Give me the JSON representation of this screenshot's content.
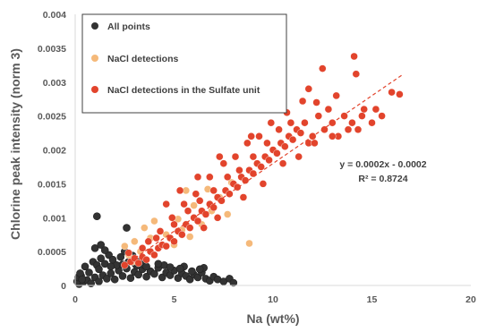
{
  "chart_data": {
    "type": "scatter",
    "title": "",
    "xlabel": "Na (wt%)",
    "ylabel": "Chlorine peak intensity (norm 3)",
    "xlim": [
      0,
      20
    ],
    "ylim": [
      0,
      0.004
    ],
    "x_ticks": [
      "0",
      "5",
      "10",
      "15",
      "20"
    ],
    "y_ticks": [
      "0",
      "0.0005",
      "0.001",
      "0.0015",
      "0.002",
      "0.0025",
      "0.003",
      "0.0035",
      "0.004"
    ],
    "grid": false,
    "legend_position": "top-left",
    "legend": [
      "All points",
      "NaCl detections",
      "NaCl detections in the Sulfate unit"
    ],
    "series": [
      {
        "name": "All points",
        "color": "#333333",
        "points": [
          [
            0.2,
            2e-05
          ],
          [
            0.4,
            5e-05
          ],
          [
            0.6,
            8e-05
          ],
          [
            0.8,
            3e-05
          ],
          [
            1.0,
            0.00012
          ],
          [
            1.2,
            6e-05
          ],
          [
            1.4,
            0.00015
          ],
          [
            1.6,
            0.0001
          ],
          [
            1.8,
            0.00018
          ],
          [
            2.0,
            9e-05
          ],
          [
            2.2,
            0.00022
          ],
          [
            2.4,
            0.00014
          ],
          [
            2.6,
            0.00025
          ],
          [
            2.8,
            0.00011
          ],
          [
            3.0,
            0.0002
          ],
          [
            3.2,
            0.00016
          ],
          [
            3.4,
            0.00024
          ],
          [
            3.6,
            0.00013
          ],
          [
            3.8,
            0.00021
          ],
          [
            4.0,
            0.00017
          ],
          [
            4.2,
            0.00026
          ],
          [
            4.4,
            0.00012
          ],
          [
            4.6,
            0.00019
          ],
          [
            4.8,
            0.00015
          ],
          [
            5.0,
            0.00022
          ],
          [
            5.2,
            0.00011
          ],
          [
            5.4,
            0.00018
          ],
          [
            5.6,
            0.00014
          ],
          [
            5.8,
            9e-05
          ],
          [
            6.0,
            0.00016
          ],
          [
            6.2,
            0.00012
          ],
          [
            6.4,
            0.00019
          ],
          [
            6.6,
            0.0001
          ],
          [
            6.8,
            7e-05
          ],
          [
            7.0,
            0.00013
          ],
          [
            7.2,
            9e-05
          ],
          [
            7.5,
            6e-05
          ],
          [
            7.8,
            0.0001
          ],
          [
            8.0,
            4e-05
          ],
          [
            0.5,
            0.00028
          ],
          [
            0.9,
            0.00035
          ],
          [
            1.1,
            0.0003
          ],
          [
            1.3,
            0.0004
          ],
          [
            1.5,
            0.00032
          ],
          [
            1.7,
            0.00045
          ],
          [
            1.9,
            0.00038
          ],
          [
            2.1,
            0.0003
          ],
          [
            2.3,
            0.00042
          ],
          [
            2.5,
            0.0005
          ],
          [
            2.7,
            0.00035
          ],
          [
            2.9,
            0.00044
          ],
          [
            3.1,
            0.00029
          ],
          [
            3.3,
            0.00036
          ],
          [
            3.5,
            0.0003
          ],
          [
            4.5,
            0.0003
          ],
          [
            5.5,
            0.00028
          ],
          [
            6.5,
            0.00026
          ],
          [
            1.0,
            0.00055
          ],
          [
            1.3,
            0.0006
          ],
          [
            1.5,
            0.00052
          ],
          [
            2.6,
            0.00085
          ],
          [
            1.1,
            0.00102
          ],
          [
            0.3,
            0.00014
          ],
          [
            0.7,
            0.00019
          ],
          [
            1.2,
            0.00024
          ],
          [
            1.8,
            0.00028
          ],
          [
            2.4,
            0.00031
          ],
          [
            3.0,
            0.00033
          ],
          [
            3.6,
            0.00028
          ],
          [
            4.2,
            0.00032
          ],
          [
            4.8,
            0.00027
          ],
          [
            5.3,
            0.00025
          ],
          [
            5.9,
            0.00021
          ],
          [
            6.3,
            0.00024
          ],
          [
            0.1,
            6e-05
          ],
          [
            0.15,
            0.00012
          ],
          [
            0.25,
            0.00018
          ],
          [
            0.35,
            9e-05
          ]
        ]
      },
      {
        "name": "NaCl detections",
        "color": "#f5b97a",
        "points": [
          [
            2.5,
            0.00058
          ],
          [
            2.7,
            0.00045
          ],
          [
            3.0,
            0.00065
          ],
          [
            3.3,
            0.0005
          ],
          [
            3.8,
            0.0007
          ],
          [
            4.2,
            0.00055
          ],
          [
            4.6,
            0.00075
          ],
          [
            5.0,
            0.0006
          ],
          [
            5.4,
            0.00082
          ],
          [
            5.8,
            0.00072
          ],
          [
            6.4,
            0.0009
          ],
          [
            6.9,
            0.0011
          ],
          [
            7.3,
            0.0013
          ],
          [
            7.7,
            0.00105
          ],
          [
            8.8,
            0.00062
          ],
          [
            5.6,
            0.0014
          ],
          [
            6.0,
            0.00118
          ],
          [
            8.2,
            0.00145
          ],
          [
            4.0,
            0.00095
          ],
          [
            3.5,
            0.00085
          ],
          [
            2.9,
            0.00035
          ],
          [
            6.7,
            0.00142
          ],
          [
            5.2,
            0.00098
          ],
          [
            7.9,
            0.00152
          ]
        ]
      },
      {
        "name": "NaCl detections in the Sulfate unit",
        "color": "#e2442c",
        "points": [
          [
            2.5,
            0.0003
          ],
          [
            2.8,
            0.00035
          ],
          [
            3.0,
            0.0004
          ],
          [
            3.2,
            0.00033
          ],
          [
            3.4,
            0.00042
          ],
          [
            3.6,
            0.00038
          ],
          [
            3.8,
            0.0005
          ],
          [
            4.0,
            0.00045
          ],
          [
            4.2,
            0.00055
          ],
          [
            4.4,
            0.0006
          ],
          [
            4.6,
            0.00058
          ],
          [
            4.8,
            0.0007
          ],
          [
            5.0,
            0.00065
          ],
          [
            5.2,
            0.0008
          ],
          [
            5.4,
            0.00075
          ],
          [
            5.6,
            0.0009
          ],
          [
            5.8,
            0.00085
          ],
          [
            6.0,
            0.001
          ],
          [
            6.2,
            0.00095
          ],
          [
            6.4,
            0.0011
          ],
          [
            6.6,
            0.00105
          ],
          [
            6.8,
            0.0012
          ],
          [
            7.0,
            0.00115
          ],
          [
            7.2,
            0.0013
          ],
          [
            7.4,
            0.00125
          ],
          [
            7.6,
            0.0014
          ],
          [
            7.8,
            0.00135
          ],
          [
            8.0,
            0.0015
          ],
          [
            8.2,
            0.00145
          ],
          [
            8.4,
            0.0016
          ],
          [
            8.6,
            0.00155
          ],
          [
            8.8,
            0.0017
          ],
          [
            9.0,
            0.00165
          ],
          [
            9.2,
            0.0018
          ],
          [
            9.4,
            0.00175
          ],
          [
            9.6,
            0.0019
          ],
          [
            9.8,
            0.00185
          ],
          [
            10.0,
            0.002
          ],
          [
            10.2,
            0.00195
          ],
          [
            10.4,
            0.0021
          ],
          [
            10.6,
            0.00205
          ],
          [
            10.8,
            0.0022
          ],
          [
            11.0,
            0.00215
          ],
          [
            11.2,
            0.0023
          ],
          [
            11.4,
            0.00225
          ],
          [
            11.6,
            0.0024
          ],
          [
            11.8,
            0.0021
          ],
          [
            12.0,
            0.0022
          ],
          [
            12.3,
            0.0025
          ],
          [
            12.6,
            0.0023
          ],
          [
            13.0,
            0.0024
          ],
          [
            13.3,
            0.0022
          ],
          [
            13.6,
            0.0025
          ],
          [
            14.0,
            0.0024
          ],
          [
            14.3,
            0.0023
          ],
          [
            14.6,
            0.0026
          ],
          [
            15.0,
            0.0024
          ],
          [
            15.5,
            0.0025
          ],
          [
            16.0,
            0.00285
          ],
          [
            16.4,
            0.00282
          ],
          [
            14.1,
            0.00338
          ],
          [
            14.2,
            0.00312
          ],
          [
            13.2,
            0.0028
          ],
          [
            12.8,
            0.0026
          ],
          [
            11.5,
            0.00272
          ],
          [
            12.2,
            0.0027
          ],
          [
            10.7,
            0.00255
          ],
          [
            9.9,
            0.0024
          ],
          [
            11.8,
            0.0029
          ],
          [
            12.5,
            0.0032
          ],
          [
            5.0,
            0.0009
          ],
          [
            5.5,
            0.0012
          ],
          [
            6.1,
            0.00135
          ],
          [
            6.8,
            0.0016
          ],
          [
            7.5,
            0.0018
          ],
          [
            8.1,
            0.0019
          ],
          [
            8.7,
            0.0021
          ],
          [
            9.3,
            0.0022
          ],
          [
            4.3,
            0.0008
          ],
          [
            4.9,
            0.001
          ],
          [
            5.7,
            0.0011
          ],
          [
            6.3,
            0.00125
          ],
          [
            7.0,
            0.0014
          ],
          [
            7.7,
            0.0016
          ],
          [
            8.3,
            0.0017
          ],
          [
            9.0,
            0.0019
          ],
          [
            9.7,
            0.0021
          ],
          [
            10.3,
            0.0023
          ],
          [
            10.9,
            0.0024
          ],
          [
            3.7,
            0.00065
          ],
          [
            4.1,
            0.0007
          ],
          [
            6.5,
            0.00085
          ],
          [
            7.2,
            0.001
          ],
          [
            8.5,
            0.0013
          ],
          [
            9.5,
            0.0015
          ],
          [
            10.5,
            0.0018
          ],
          [
            11.3,
            0.0019
          ],
          [
            12.1,
            0.0021
          ],
          [
            13.0,
            0.0022
          ],
          [
            13.8,
            0.0023
          ],
          [
            14.5,
            0.0025
          ],
          [
            15.2,
            0.0026
          ],
          [
            8.9,
            0.0022
          ],
          [
            7.3,
            0.0019
          ],
          [
            6.2,
            0.0016
          ],
          [
            5.3,
            0.0014
          ],
          [
            4.6,
            0.0012
          ],
          [
            3.4,
            0.00055
          ],
          [
            2.7,
            0.00048
          ]
        ]
      }
    ],
    "trendline": {
      "series": "NaCl detections in the Sulfate unit",
      "style": "dashed",
      "color": "#e2442c",
      "slope": 0.0002,
      "intercept": -0.0002,
      "x_range": [
        2.5,
        16.5
      ],
      "equation": "y = 0.0002x - 0.0002",
      "r_squared": "R² = 0.8724"
    }
  }
}
